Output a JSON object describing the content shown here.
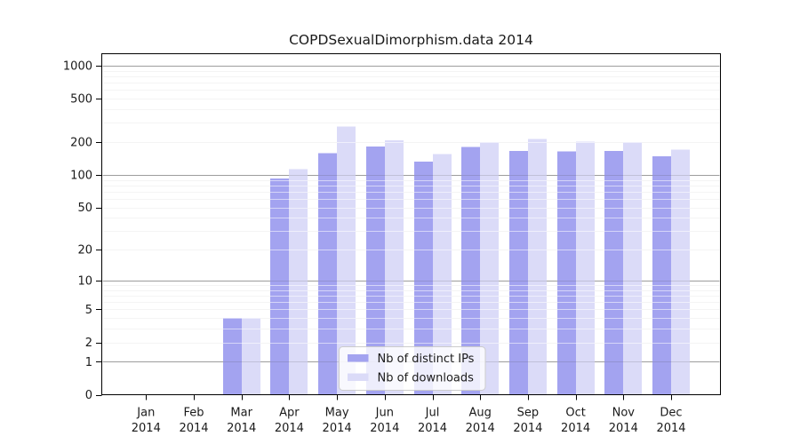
{
  "figure": {
    "background": "#ffffff"
  },
  "chart_data": {
    "type": "bar",
    "title": "COPDSexualDimorphism.data 2014",
    "categories": [
      "Jan",
      "Feb",
      "Mar",
      "Apr",
      "May",
      "Jun",
      "Jul",
      "Aug",
      "Sep",
      "Oct",
      "Nov",
      "Dec"
    ],
    "year": "2014",
    "series": [
      {
        "name": "Nb of distinct IPs",
        "color": "#a3a3f0",
        "values": [
          0,
          0,
          4,
          93,
          158,
          182,
          133,
          180,
          166,
          165,
          166,
          149
        ]
      },
      {
        "name": "Nb of downloads",
        "color": "#dbdbf8",
        "values": [
          0,
          0,
          4,
          113,
          278,
          207,
          155,
          200,
          214,
          203,
          201,
          170
        ]
      }
    ],
    "y_ticks": [
      1000,
      500,
      200,
      100,
      50,
      20,
      10,
      5,
      2,
      1,
      0
    ],
    "ylim": [
      0,
      1000
    ],
    "yscale": "log10(value+1), 0 at baseline",
    "grid": "horizontal, major and minor, on",
    "legend_position": "bottom-center inside plot",
    "colors": {
      "major_gridline": "#b0b0b0",
      "minor_gridline": "#e7e7e7",
      "axis": "#000000"
    }
  }
}
